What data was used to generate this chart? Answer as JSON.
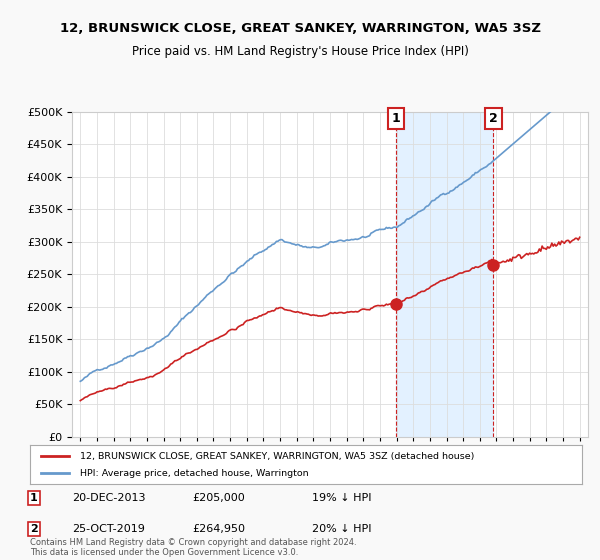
{
  "title": "12, BRUNSWICK CLOSE, GREAT SANKEY, WARRINGTON, WA5 3SZ",
  "subtitle": "Price paid vs. HM Land Registry's House Price Index (HPI)",
  "xlim": [
    1994.5,
    2025.5
  ],
  "ylim": [
    0,
    500000
  ],
  "yticks": [
    0,
    50000,
    100000,
    150000,
    200000,
    250000,
    300000,
    350000,
    400000,
    450000,
    500000
  ],
  "xticks": [
    1995,
    1996,
    1997,
    1998,
    1999,
    2000,
    2001,
    2002,
    2003,
    2004,
    2005,
    2006,
    2007,
    2008,
    2009,
    2010,
    2011,
    2012,
    2013,
    2014,
    2015,
    2016,
    2017,
    2018,
    2019,
    2020,
    2021,
    2022,
    2023,
    2024,
    2025
  ],
  "hpi_color": "#6699cc",
  "price_color": "#cc2222",
  "shaded_color": "#ddeeff",
  "vline_color": "#cc2222",
  "marker1_year": 2013.97,
  "marker1_value": 205000,
  "marker1_label": "1",
  "marker2_year": 2019.82,
  "marker2_value": 264950,
  "marker2_label": "2",
  "transaction1_date": "20-DEC-2013",
  "transaction1_price": "£205,000",
  "transaction1_hpi": "19% ↓ HPI",
  "transaction2_date": "25-OCT-2019",
  "transaction2_price": "£264,950",
  "transaction2_hpi": "20% ↓ HPI",
  "legend1": "12, BRUNSWICK CLOSE, GREAT SANKEY, WARRINGTON, WA5 3SZ (detached house)",
  "legend2": "HPI: Average price, detached house, Warrington",
  "footer": "Contains HM Land Registry data © Crown copyright and database right 2024.\nThis data is licensed under the Open Government Licence v3.0.",
  "background_color": "#f9f9f9",
  "plot_bg_color": "#ffffff"
}
